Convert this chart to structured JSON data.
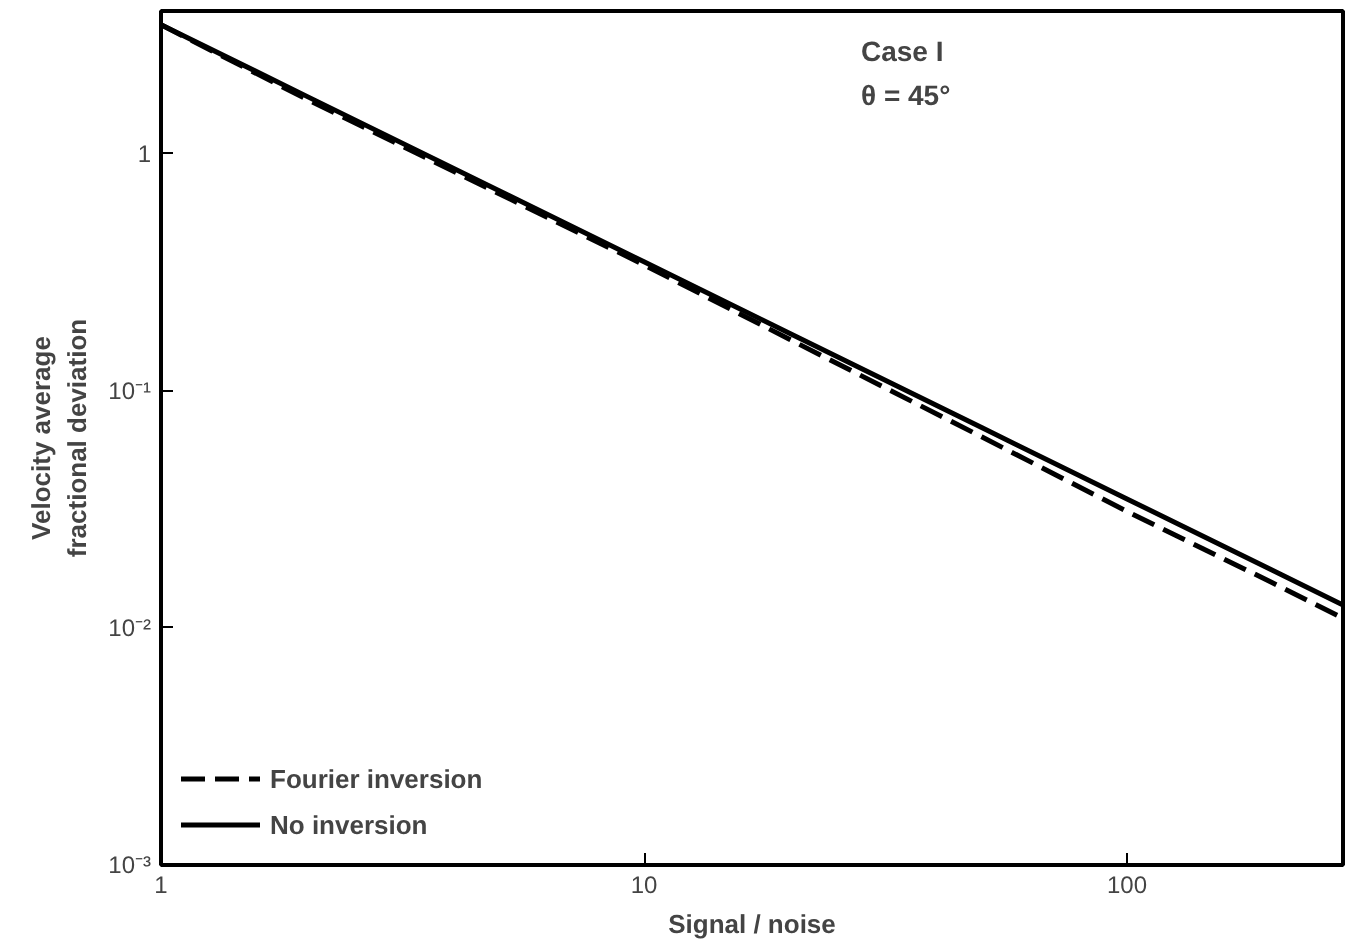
{
  "chart_data": {
    "type": "line",
    "xlabel": "Signal / noise",
    "ylabel": "Velocity average\nfractional deviation",
    "annotations": [
      "Case I",
      "θ = 45°"
    ],
    "log": "xy",
    "grid": false,
    "legend": "bottom left",
    "xlim": [
      1,
      280
    ],
    "ylim": [
      0.001,
      4
    ],
    "xticks": [
      1,
      10,
      100
    ],
    "yticks": [
      {
        "value": 0.001,
        "label": "10⁻³"
      },
      {
        "value": 0.01,
        "label": "10⁻²"
      },
      {
        "value": 0.1,
        "label": "10⁻¹"
      },
      1
    ],
    "x": [
      1,
      2,
      5,
      10,
      20,
      50,
      100,
      200,
      280
    ],
    "series": [
      {
        "name": "Fourier inversion",
        "color": "#000000",
        "line_style": "dashed",
        "values": [
          3.5,
          1.7,
          0.68,
          0.34,
          0.165,
          0.064,
          0.031,
          0.0155,
          0.011
        ]
      },
      {
        "name": "No inversion",
        "color": "#000000",
        "line_style": "solid",
        "values": [
          3.5,
          1.75,
          0.7,
          0.35,
          0.175,
          0.07,
          0.035,
          0.0175,
          0.0125
        ]
      }
    ]
  }
}
